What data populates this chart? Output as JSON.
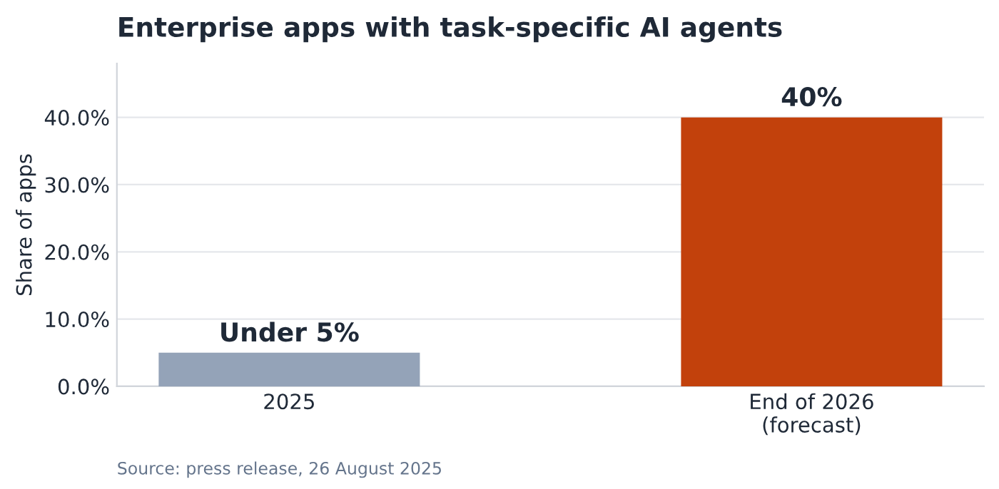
{
  "chart_data": {
    "type": "bar",
    "title": "Enterprise apps with task-specific AI agents",
    "ylabel": "Share of apps",
    "categories": [
      "2025",
      "End of 2026\n(forecast)"
    ],
    "values": [
      5,
      40
    ],
    "colors": [
      "#94a3b8",
      "#c2410c"
    ],
    "value_labels": [
      "Under 5%",
      "40%"
    ],
    "ylim": [
      0,
      48
    ],
    "yticks": [
      {
        "value": 0,
        "label": "0.0%"
      },
      {
        "value": 10,
        "label": "10.0%"
      },
      {
        "value": 20,
        "label": "20.0%"
      },
      {
        "value": 30,
        "label": "30.0%"
      },
      {
        "value": 40,
        "label": "40.0%"
      }
    ],
    "grid": "y",
    "legend": false,
    "annotations": [
      "Source: press release, 26 August 2025"
    ]
  }
}
